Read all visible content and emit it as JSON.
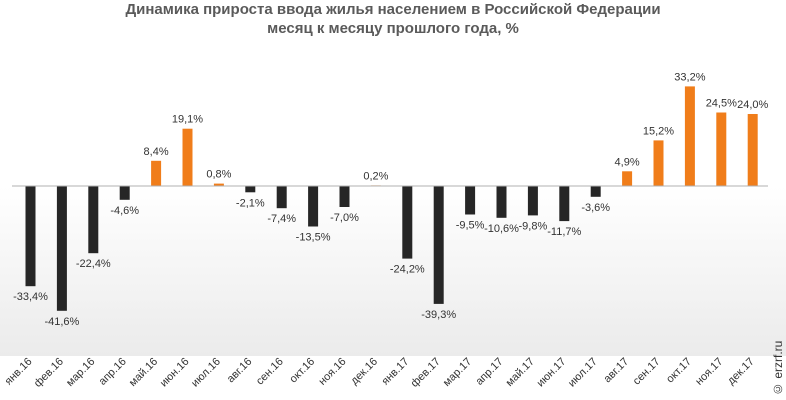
{
  "chart_data": {
    "type": "bar",
    "title_lines": [
      "Динамика прироста ввода жилья населением в Российской Федерации",
      "месяц к месяцу прошлого года, %"
    ],
    "categories": [
      "янв.16",
      "фев.16",
      "мар.16",
      "апр.16",
      "май.16",
      "июн.16",
      "июл.16",
      "авг.16",
      "сен.16",
      "окт.16",
      "ноя.16",
      "дек.16",
      "янв.17",
      "фев.17",
      "мар.17",
      "апр.17",
      "май.17",
      "июн.17",
      "июл.17",
      "авг.17",
      "сен.17",
      "окт.17",
      "ноя.17",
      "дек.17"
    ],
    "values": [
      -33.4,
      -41.6,
      -22.4,
      -4.6,
      8.4,
      19.1,
      0.8,
      -2.1,
      -7.4,
      -13.5,
      -7.0,
      0.2,
      -24.2,
      -39.3,
      -9.5,
      -10.6,
      -9.8,
      -11.7,
      -3.6,
      4.9,
      15.2,
      33.2,
      24.5,
      24.0
    ],
    "value_labels": [
      "-33,4%",
      "-41,6%",
      "-22,4%",
      "-4,6%",
      "8,4%",
      "19,1%",
      "0,8%",
      "-2,1%",
      "-7,4%",
      "-13,5%",
      "-7,0%",
      "0,2%",
      "-24,2%",
      "-39,3%",
      "-9,5%",
      "-10,6%",
      "-9,8%",
      "-11,7%",
      "-3,6%",
      "4,9%",
      "15,2%",
      "33,2%",
      "24,5%",
      "24,0%"
    ],
    "colors": {
      "positive": "#f07d1a",
      "negative": "#262626",
      "axis": "#b0b0b0",
      "label": "#333333"
    },
    "grid": false,
    "legend": "none"
  },
  "watermark": "© erzrf.ru"
}
